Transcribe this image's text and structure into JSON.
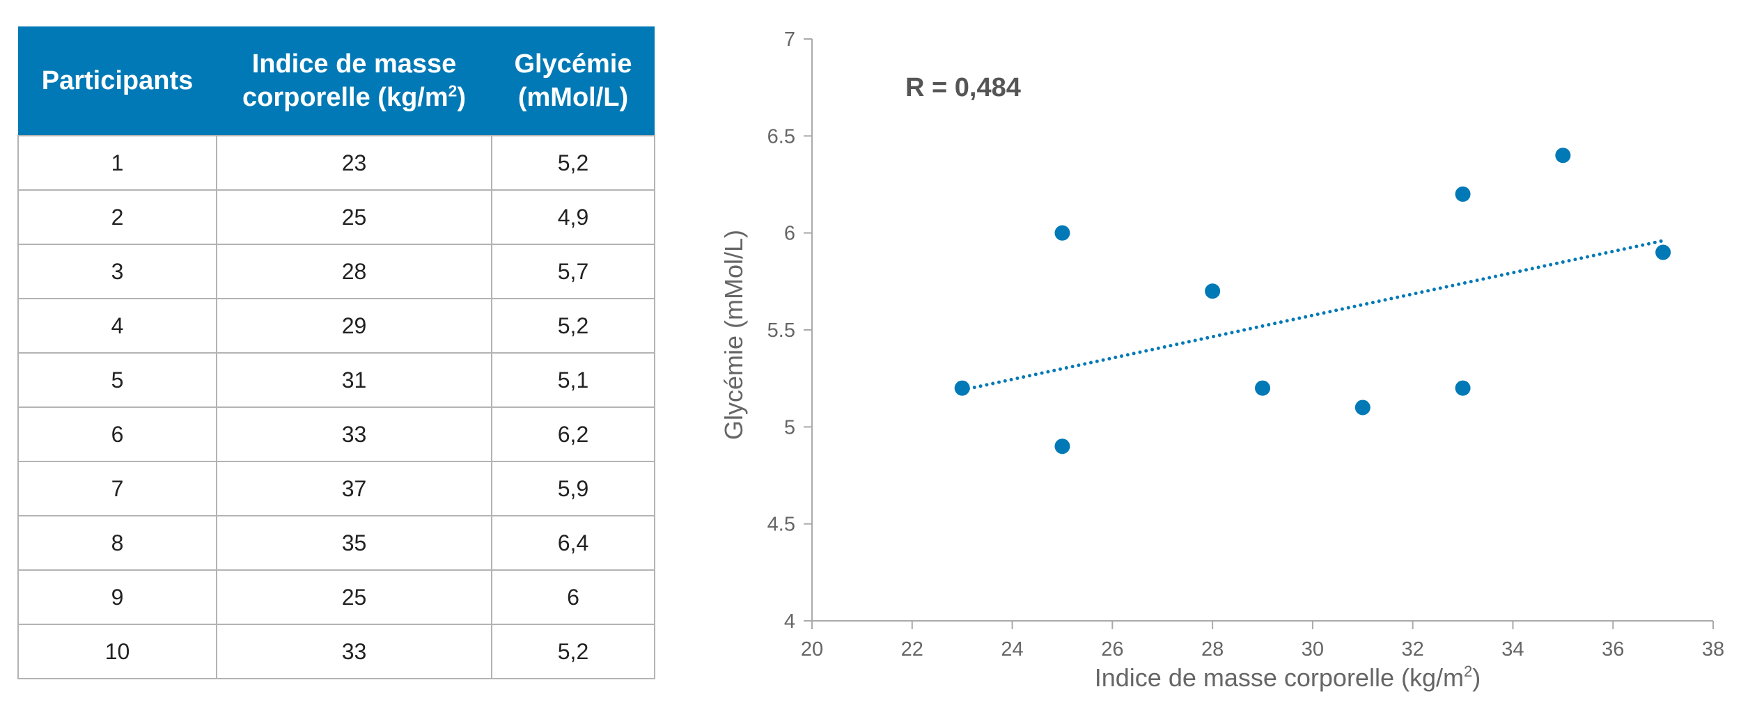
{
  "table": {
    "headers": {
      "participants": "Participants",
      "bmi_line1": "Indice de masse",
      "bmi_line2": "corporelle (kg/m",
      "bmi_sup": "2",
      "bmi_close": ")",
      "glucose_line1": "Glycémie",
      "glucose_line2": "(mMol/L)"
    },
    "rows": [
      [
        "1",
        "23",
        "5,2"
      ],
      [
        "2",
        "25",
        "4,9"
      ],
      [
        "3",
        "28",
        "5,7"
      ],
      [
        "4",
        "29",
        "5,2"
      ],
      [
        "5",
        "31",
        "5,1"
      ],
      [
        "6",
        "33",
        "6,2"
      ],
      [
        "7",
        "37",
        "5,9"
      ],
      [
        "8",
        "35",
        "6,4"
      ],
      [
        "9",
        "25",
        "6"
      ],
      [
        "10",
        "33",
        "5,2"
      ]
    ]
  },
  "chart_data": {
    "type": "scatter",
    "annotation": "R = 0,484",
    "xlabel": "Indice de masse corporelle (kg/m",
    "xlabel_sup": "2",
    "xlabel_close": ")",
    "ylabel": "Glycémie (mMol/L)",
    "xlim": [
      20,
      38
    ],
    "ylim": [
      4,
      7
    ],
    "x_ticks": [
      "20",
      "22",
      "24",
      "26",
      "28",
      "30",
      "32",
      "34",
      "36",
      "38"
    ],
    "y_ticks": [
      "4",
      "4.5",
      "5",
      "5.5",
      "6",
      "6.5",
      "7"
    ],
    "points": [
      {
        "x": 23,
        "y": 5.2
      },
      {
        "x": 25,
        "y": 4.9
      },
      {
        "x": 28,
        "y": 5.7
      },
      {
        "x": 29,
        "y": 5.2
      },
      {
        "x": 31,
        "y": 5.1
      },
      {
        "x": 33,
        "y": 6.2
      },
      {
        "x": 37,
        "y": 5.9
      },
      {
        "x": 35,
        "y": 6.4
      },
      {
        "x": 25,
        "y": 6
      },
      {
        "x": 33,
        "y": 5.2
      }
    ],
    "trendline": {
      "type": "linear",
      "from": {
        "x": 23,
        "y": 5.19
      },
      "to": {
        "x": 37,
        "y": 5.96
      },
      "style": "dotted"
    },
    "grid": false,
    "colors": {
      "points": "#0179b6",
      "trendline": "#0179b6",
      "axis": "#aaaaaa",
      "tick_label": "#666666",
      "annotation": "#555555",
      "header_bg": "#0179b6"
    }
  }
}
